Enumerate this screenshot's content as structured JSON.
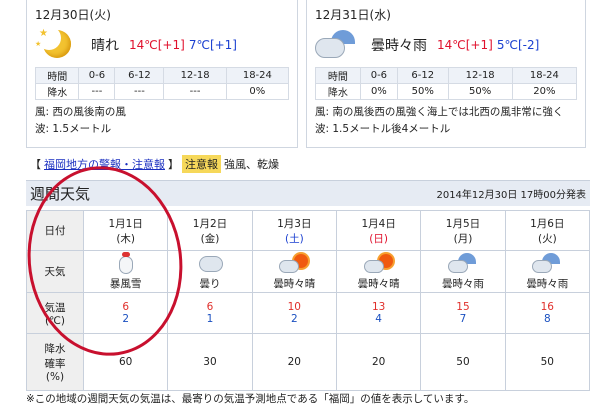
{
  "days": [
    {
      "date": "12月30日(火)",
      "icon": "moon-clear-icon",
      "weather": "晴れ",
      "high": "14℃",
      "high_diff": "[+1]",
      "low": "7℃",
      "low_diff": "[+1]",
      "hours_label": "時間",
      "precip_label": "降水",
      "hours": [
        "0-6",
        "6-12",
        "12-18",
        "18-24"
      ],
      "precip": [
        "---",
        "---",
        "---",
        "0%"
      ],
      "wind": "風: 西の風後南の風",
      "wave": "波: 1.5メートル"
    },
    {
      "date": "12月31日(水)",
      "icon": "cloud-rain-icon",
      "weather": "曇時々雨",
      "high": "14℃",
      "high_diff": "[+1]",
      "low": "5℃",
      "low_diff": "[-2]",
      "hours_label": "時間",
      "precip_label": "降水",
      "hours": [
        "0-6",
        "6-12",
        "12-18",
        "18-24"
      ],
      "precip": [
        "0%",
        "50%",
        "50%",
        "20%"
      ],
      "wind": "風: 南の風後西の風強く海上では北西の風非常に強く",
      "wave": "波: 1.5メートル後4メートル"
    }
  ],
  "warning": {
    "open": "【",
    "link": "福岡地方の警報・注意報",
    "close": "】",
    "badge": "注意報",
    "text": "強風、乾燥"
  },
  "weekly": {
    "title": "週間天気",
    "issued": "2014年12月30日 17時00分発表",
    "labels": {
      "date": "日付",
      "weather": "天気",
      "temp": "気温\n(℃)",
      "pop": "降水\n確率\n(%)"
    },
    "days": [
      {
        "date": "1月1日",
        "dow": "(木)",
        "icon": "snowstorm-icon",
        "weather": "暴風雪",
        "high": "6",
        "low": "2",
        "pop": "60"
      },
      {
        "date": "1月2日",
        "dow": "(金)",
        "icon": "cloudy-icon",
        "weather": "曇り",
        "high": "6",
        "low": "1",
        "pop": "30"
      },
      {
        "date": "1月3日",
        "dow": "(土)",
        "icon": "cloud-sun-icon",
        "weather": "曇時々晴",
        "high": "10",
        "low": "2",
        "pop": "20"
      },
      {
        "date": "1月4日",
        "dow": "(日)",
        "icon": "cloud-sun-icon",
        "weather": "曇時々晴",
        "high": "13",
        "low": "4",
        "pop": "20"
      },
      {
        "date": "1月5日",
        "dow": "(月)",
        "icon": "cloud-rain-icon",
        "weather": "曇時々雨",
        "high": "15",
        "low": "7",
        "pop": "50"
      },
      {
        "date": "1月6日",
        "dow": "(火)",
        "icon": "cloud-rain-icon",
        "weather": "曇時々雨",
        "high": "16",
        "low": "8",
        "pop": "50"
      }
    ]
  },
  "footnote": "※この地域の週間天気の気温は、最寄りの気温予測地点である「福岡」の値を表示しています。",
  "colors": {
    "high": "#e0102c",
    "low": "#1a3fd0",
    "annotation_circle": "#c8102e",
    "badge": "#f6d85a"
  }
}
